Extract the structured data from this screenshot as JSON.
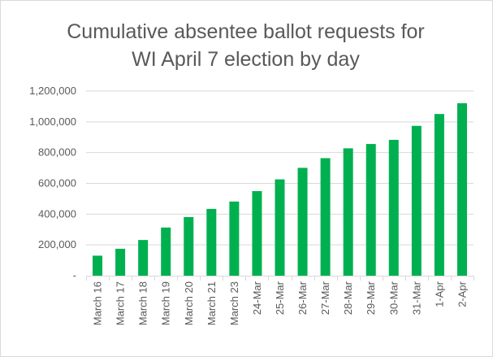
{
  "chart_data": {
    "type": "bar",
    "title_line1": "Cumulative absentee ballot requests for",
    "title_line2": "WI April 7 election by day",
    "categories": [
      "March 16",
      "March 17",
      "March 18",
      "March 19",
      "March 20",
      "March 21",
      "March 23",
      "24-Mar",
      "25-Mar",
      "26-Mar",
      "27-Mar",
      "28-Mar",
      "29-Mar",
      "30-Mar",
      "31-Mar",
      "1-Apr",
      "2-Apr"
    ],
    "values": [
      130000,
      175000,
      232000,
      313000,
      381000,
      434000,
      482000,
      550000,
      626000,
      701000,
      764000,
      828000,
      856000,
      883000,
      974000,
      1051000,
      1121000
    ],
    "y_ticks": [
      {
        "value": 0,
        "label": "-"
      },
      {
        "value": 200000,
        "label": "200,000"
      },
      {
        "value": 400000,
        "label": "400,000"
      },
      {
        "value": 600000,
        "label": "600,000"
      },
      {
        "value": 800000,
        "label": "800,000"
      },
      {
        "value": 1000000,
        "label": "1,000,000"
      },
      {
        "value": 1200000,
        "label": "1,200,000"
      }
    ],
    "ylim": [
      0,
      1200000
    ],
    "xlabel": "",
    "ylabel": "",
    "grid": true,
    "legend": "none",
    "colors": {
      "bar": "#00b050",
      "grid": "#d9d9d9",
      "text": "#595959"
    }
  }
}
